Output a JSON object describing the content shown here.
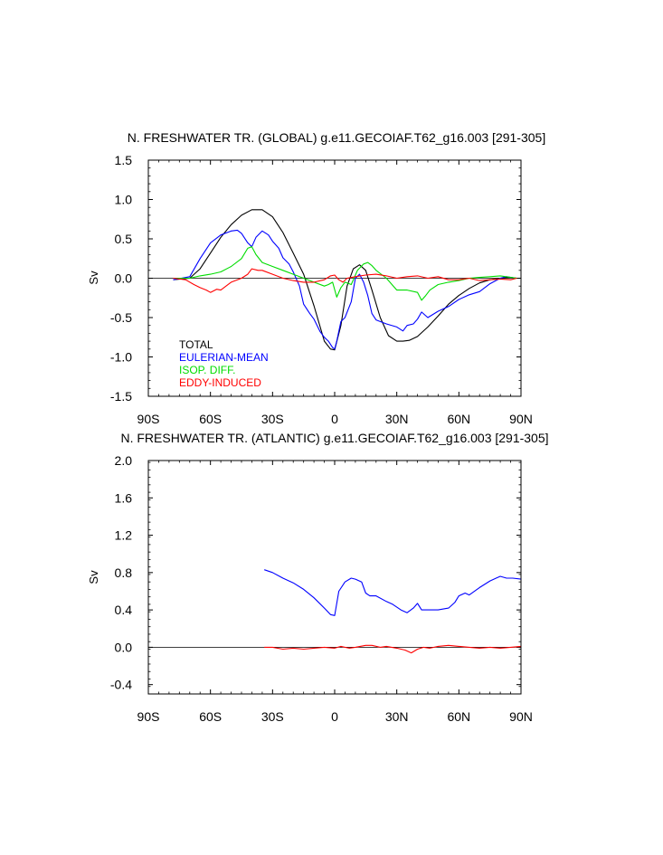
{
  "chart_data": [
    {
      "type": "line",
      "title": "N. FRESHWATER TR. (GLOBAL) g.e11.GECOIAF.T62_g16.003 [291-305]",
      "xlabel": "",
      "ylabel": "Sv",
      "xlim": [
        -90,
        90
      ],
      "ylim": [
        -1.5,
        1.5
      ],
      "x_ticks": [
        -90,
        -60,
        -30,
        0,
        30,
        60,
        90
      ],
      "x_tick_labels": [
        "90S",
        "60S",
        "30S",
        "0",
        "30N",
        "60N",
        "90N"
      ],
      "y_ticks": [
        -1.5,
        -1.0,
        -0.5,
        0.0,
        0.5,
        1.0,
        1.5
      ],
      "y_tick_labels": [
        "-1.5",
        "-1.0",
        "-0.5",
        "0.0",
        "0.5",
        "1.0",
        "1.5"
      ],
      "zero_line": true,
      "legend": "bottom-left",
      "series": [
        {
          "name": "TOTAL",
          "color": "#000000",
          "x": [
            -78,
            -70,
            -65,
            -60,
            -55,
            -50,
            -45,
            -40,
            -35,
            -30,
            -25,
            -20,
            -15,
            -10,
            -5,
            -2,
            0,
            3,
            6,
            9,
            12,
            15,
            18,
            22,
            26,
            30,
            33,
            36,
            40,
            45,
            50,
            55,
            60,
            65,
            70,
            75,
            80,
            85,
            88
          ],
          "y": [
            -0.02,
            0.0,
            0.12,
            0.32,
            0.52,
            0.68,
            0.8,
            0.87,
            0.87,
            0.78,
            0.58,
            0.32,
            0.05,
            -0.35,
            -0.8,
            -0.9,
            -0.91,
            -0.6,
            -0.1,
            0.12,
            0.17,
            0.1,
            -0.15,
            -0.5,
            -0.73,
            -0.8,
            -0.8,
            -0.79,
            -0.74,
            -0.62,
            -0.48,
            -0.33,
            -0.22,
            -0.13,
            -0.06,
            -0.02,
            0.0,
            0.01,
            0.0
          ]
        },
        {
          "name": "EULERIAN-MEAN",
          "color": "#0000ff",
          "x": [
            -78,
            -70,
            -65,
            -60,
            -55,
            -50,
            -47,
            -45,
            -42,
            -40,
            -38,
            -35,
            -32,
            -30,
            -27,
            -25,
            -22,
            -20,
            -17,
            -15,
            -12,
            -10,
            -7,
            -5,
            -3,
            -1,
            0,
            1,
            3,
            5,
            8,
            10,
            12,
            14,
            16,
            18,
            20,
            25,
            30,
            33,
            35,
            38,
            40,
            42,
            45,
            50,
            55,
            60,
            65,
            70,
            75,
            80,
            83,
            85,
            87
          ],
          "y": [
            -0.02,
            0.02,
            0.25,
            0.45,
            0.55,
            0.6,
            0.61,
            0.57,
            0.45,
            0.4,
            0.52,
            0.6,
            0.55,
            0.47,
            0.38,
            0.26,
            0.18,
            0.08,
            -0.1,
            -0.33,
            -0.45,
            -0.52,
            -0.68,
            -0.75,
            -0.8,
            -0.88,
            -0.9,
            -0.8,
            -0.55,
            -0.5,
            -0.3,
            0.0,
            0.05,
            -0.05,
            -0.22,
            -0.45,
            -0.53,
            -0.58,
            -0.62,
            -0.67,
            -0.6,
            -0.58,
            -0.52,
            -0.43,
            -0.5,
            -0.42,
            -0.36,
            -0.27,
            -0.21,
            -0.17,
            -0.07,
            0.0,
            0.02,
            0.01,
            0.0
          ]
        },
        {
          "name": "ISOP. DIFF.",
          "color": "#00dd00",
          "x": [
            -78,
            -70,
            -65,
            -60,
            -55,
            -50,
            -45,
            -42,
            -40,
            -38,
            -35,
            -30,
            -25,
            -20,
            -15,
            -10,
            -5,
            -3,
            -1,
            1,
            3,
            5,
            8,
            11,
            14,
            16,
            18,
            20,
            25,
            30,
            35,
            40,
            42,
            44,
            46,
            50,
            55,
            60,
            65,
            70,
            75,
            80,
            85,
            88
          ],
          "y": [
            0.0,
            0.0,
            0.03,
            0.05,
            0.08,
            0.15,
            0.25,
            0.38,
            0.4,
            0.3,
            0.2,
            0.15,
            0.1,
            0.05,
            0.0,
            -0.05,
            -0.1,
            -0.08,
            -0.05,
            -0.24,
            -0.12,
            -0.05,
            -0.08,
            0.1,
            0.18,
            0.2,
            0.16,
            0.1,
            0.0,
            -0.15,
            -0.15,
            -0.18,
            -0.28,
            -0.22,
            -0.15,
            -0.08,
            -0.05,
            -0.03,
            0.0,
            0.01,
            0.02,
            0.03,
            0.01,
            0.0
          ]
        },
        {
          "name": "EDDY-INDUCED",
          "color": "#ff0000",
          "x": [
            -78,
            -72,
            -68,
            -65,
            -62,
            -60,
            -57,
            -55,
            -50,
            -45,
            -42,
            -40,
            -37,
            -35,
            -30,
            -25,
            -20,
            -15,
            -10,
            -5,
            -2,
            0,
            2,
            4,
            6,
            10,
            15,
            20,
            25,
            30,
            35,
            40,
            45,
            50,
            55,
            60,
            65,
            70,
            75,
            80,
            85,
            88
          ],
          "y": [
            0.0,
            -0.02,
            -0.08,
            -0.12,
            -0.15,
            -0.18,
            -0.14,
            -0.15,
            -0.05,
            0.0,
            0.05,
            0.12,
            0.1,
            0.1,
            0.05,
            0.0,
            -0.03,
            -0.05,
            -0.05,
            -0.02,
            0.03,
            0.04,
            -0.02,
            -0.05,
            0.0,
            0.02,
            0.04,
            0.05,
            0.03,
            0.0,
            0.02,
            0.03,
            0.0,
            0.02,
            -0.02,
            -0.02,
            0.0,
            -0.03,
            -0.02,
            -0.01,
            -0.02,
            0.0
          ]
        }
      ]
    },
    {
      "type": "line",
      "title": "N. FRESHWATER TR. (ATLANTIC) g.e11.GECOIAF.T62_g16.003 [291-305]",
      "xlabel": "",
      "ylabel": "Sv",
      "xlim": [
        -90,
        90
      ],
      "ylim": [
        -0.5,
        2.0
      ],
      "x_ticks": [
        -90,
        -60,
        -30,
        0,
        30,
        60,
        90
      ],
      "x_tick_labels": [
        "90S",
        "60S",
        "30S",
        "0",
        "30N",
        "60N",
        "90N"
      ],
      "y_ticks": [
        -0.4,
        0.0,
        0.4,
        0.8,
        1.2,
        1.6,
        2.0
      ],
      "y_tick_labels": [
        "-0.4",
        "0.0",
        "0.4",
        "0.8",
        "1.2",
        "1.6",
        "2.0"
      ],
      "zero_line": true,
      "series": [
        {
          "color": "#0000ff",
          "x": [
            -34,
            -30,
            -25,
            -20,
            -15,
            -10,
            -5,
            -2,
            0,
            2,
            5,
            8,
            10,
            13,
            15,
            17,
            20,
            25,
            28,
            32,
            35,
            38,
            40,
            42,
            45,
            48,
            50,
            55,
            58,
            60,
            63,
            65,
            70,
            75,
            78,
            80,
            83,
            86,
            90
          ],
          "y": [
            0.83,
            0.8,
            0.74,
            0.69,
            0.62,
            0.53,
            0.42,
            0.35,
            0.34,
            0.6,
            0.7,
            0.74,
            0.73,
            0.7,
            0.58,
            0.55,
            0.55,
            0.49,
            0.46,
            0.4,
            0.37,
            0.42,
            0.47,
            0.4,
            0.4,
            0.4,
            0.4,
            0.42,
            0.48,
            0.55,
            0.58,
            0.56,
            0.64,
            0.71,
            0.74,
            0.76,
            0.74,
            0.74,
            0.73
          ]
        },
        {
          "color": "#ff0000",
          "x": [
            -34,
            -30,
            -25,
            -20,
            -15,
            -10,
            -5,
            0,
            3,
            7,
            10,
            15,
            18,
            22,
            25,
            30,
            34,
            37,
            40,
            43,
            46,
            50,
            55,
            60,
            65,
            70,
            75,
            80,
            85,
            90
          ],
          "y": [
            0.0,
            0.0,
            -0.02,
            -0.01,
            -0.02,
            -0.01,
            0.0,
            -0.01,
            0.01,
            -0.01,
            0.0,
            0.02,
            0.02,
            0.0,
            0.01,
            -0.01,
            -0.03,
            -0.06,
            -0.02,
            0.0,
            -0.01,
            0.01,
            0.02,
            0.01,
            0.0,
            -0.01,
            0.0,
            -0.01,
            0.0,
            0.01
          ]
        }
      ]
    }
  ]
}
